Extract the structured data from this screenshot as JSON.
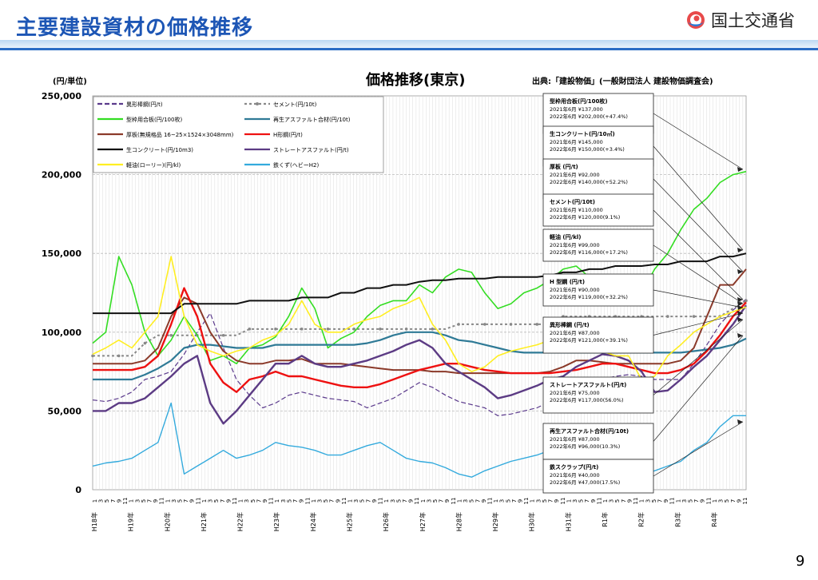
{
  "page": {
    "title": "主要建設資材の価格推移",
    "logo_text": "国土交通省",
    "page_number": "9"
  },
  "chart_data": {
    "type": "line",
    "title": "価格推移(東京)",
    "source": "出典:「建設物価」(一般財団法人 建設物価調査会)",
    "ylabel": "(円/単位)",
    "ylim": [
      0,
      250000
    ],
    "yticks": [
      "250,000",
      "200,000",
      "150,000",
      "100,000",
      "50,000",
      "0"
    ],
    "grid": true,
    "legend_position": "top-left",
    "x_year_labels": [
      "H18年",
      "H19年",
      "H20年",
      "H21年",
      "H22年",
      "H23年",
      "H24年",
      "H25年",
      "H26年",
      "H27年",
      "H28年",
      "H29年",
      "H30年",
      "H31年",
      "R1年",
      "R2年",
      "R3年",
      "R4年"
    ],
    "x_month_cycle": [
      "1",
      "3",
      "5",
      "7",
      "9",
      "11"
    ],
    "series": [
      {
        "name": "異形棒鋼(円/t)",
        "color": "#5b3a8c",
        "dash": "6,3",
        "width": 1.2,
        "values": [
          57000,
          56000,
          58000,
          62000,
          70000,
          72000,
          75000,
          86000,
          100000,
          112000,
          90000,
          70000,
          60000,
          52000,
          55000,
          60000,
          62000,
          60000,
          58000,
          57000,
          56000,
          52000,
          55000,
          58000,
          63000,
          68000,
          65000,
          60000,
          56000,
          54000,
          52000,
          47000,
          48000,
          50000,
          52000,
          56000,
          60000,
          63000,
          66000,
          70000,
          72000,
          73000,
          72000,
          70000,
          70000,
          70000,
          80000,
          92000,
          105000,
          114000,
          121000
        ]
      },
      {
        "name": "セメント(円/10t)",
        "color": "#888888",
        "dash": "3,3",
        "marker": true,
        "width": 2,
        "values": [
          85000,
          85000,
          85000,
          85000,
          93000,
          98000,
          98000,
          98000,
          98000,
          98000,
          98000,
          98000,
          102000,
          102000,
          102000,
          102000,
          102000,
          102000,
          102000,
          102000,
          102000,
          102000,
          102000,
          102000,
          102000,
          102000,
          102000,
          102000,
          105000,
          105000,
          105000,
          105000,
          105000,
          105000,
          105000,
          105000,
          110000,
          110000,
          110000,
          110000,
          110000,
          110000,
          110000,
          110000,
          110000,
          110000,
          110000,
          110000,
          110000,
          115000,
          120000
        ]
      },
      {
        "name": "型枠用合板(円/100枚)",
        "color": "#33dd22",
        "width": 1.6,
        "values": [
          93000,
          100000,
          148000,
          130000,
          100000,
          85000,
          95000,
          110000,
          98000,
          82000,
          85000,
          80000,
          90000,
          92000,
          97000,
          110000,
          128000,
          115000,
          90000,
          96000,
          100000,
          110000,
          117000,
          120000,
          120000,
          130000,
          125000,
          135000,
          140000,
          138000,
          125000,
          115000,
          118000,
          125000,
          128000,
          133000,
          140000,
          142000,
          135000,
          125000,
          118000,
          120000,
          125000,
          140000,
          150000,
          165000,
          178000,
          185000,
          195000,
          200000,
          202000
        ]
      },
      {
        "name": "再生アスファルト合材(円/10t)",
        "color": "#2f7a96",
        "width": 2.2,
        "values": [
          70000,
          70000,
          70000,
          70000,
          73000,
          77000,
          82000,
          90000,
          92000,
          92000,
          91000,
          90000,
          90000,
          90000,
          92000,
          92000,
          92000,
          92000,
          92000,
          92000,
          92000,
          93000,
          95000,
          98000,
          100000,
          100000,
          100000,
          98000,
          95000,
          94000,
          92000,
          90000,
          88000,
          87000,
          87000,
          87000,
          87000,
          87000,
          87000,
          87000,
          87000,
          87000,
          87000,
          87000,
          87000,
          87000,
          88000,
          89000,
          90000,
          92000,
          96000
        ]
      },
      {
        "name": "厚板(無規格品 16~25×1524×3048mm)",
        "color": "#8b3a2a",
        "width": 2,
        "values": [
          80000,
          80000,
          80000,
          80000,
          82000,
          90000,
          110000,
          122000,
          118000,
          100000,
          88000,
          82000,
          80000,
          80000,
          82000,
          82000,
          83000,
          80000,
          80000,
          80000,
          79000,
          78000,
          77000,
          76000,
          76000,
          76000,
          75000,
          75000,
          74000,
          74000,
          74000,
          74000,
          74000,
          74000,
          74000,
          75000,
          78000,
          82000,
          82000,
          81000,
          80000,
          80000,
          80000,
          80000,
          80000,
          82000,
          90000,
          110000,
          130000,
          130000,
          140000
        ]
      },
      {
        "name": "H形鋼(円/t)",
        "color": "#ee1111",
        "width": 2.4,
        "values": [
          76000,
          76000,
          76000,
          76000,
          78000,
          85000,
          105000,
          128000,
          110000,
          80000,
          68000,
          62000,
          70000,
          72000,
          75000,
          72000,
          72000,
          70000,
          68000,
          66000,
          65000,
          65000,
          67000,
          70000,
          73000,
          76000,
          78000,
          80000,
          80000,
          78000,
          76000,
          75000,
          74000,
          74000,
          74000,
          74000,
          75000,
          76000,
          78000,
          80000,
          80000,
          78000,
          76000,
          74000,
          74000,
          76000,
          80000,
          88000,
          98000,
          110000,
          119000
        ]
      },
      {
        "name": "生コンクリート(円/10m3)",
        "color": "#111111",
        "width": 2,
        "values": [
          112000,
          112000,
          112000,
          112000,
          112000,
          112000,
          112000,
          118000,
          118000,
          118000,
          118000,
          118000,
          120000,
          120000,
          120000,
          120000,
          122000,
          122000,
          122000,
          125000,
          125000,
          128000,
          128000,
          130000,
          130000,
          132000,
          133000,
          133000,
          134000,
          134000,
          134000,
          135000,
          135000,
          135000,
          135000,
          136000,
          138000,
          138000,
          140000,
          140000,
          142000,
          142000,
          142000,
          143000,
          143000,
          145000,
          145000,
          145000,
          148000,
          148000,
          150000
        ]
      },
      {
        "name": "ストレートアスファルト(円/t)",
        "color": "#5c3b84",
        "width": 2.4,
        "values": [
          50000,
          50000,
          55000,
          55000,
          58000,
          65000,
          72000,
          80000,
          85000,
          55000,
          42000,
          50000,
          60000,
          70000,
          80000,
          80000,
          85000,
          80000,
          78000,
          78000,
          80000,
          82000,
          85000,
          88000,
          92000,
          95000,
          90000,
          80000,
          75000,
          70000,
          65000,
          58000,
          60000,
          63000,
          66000,
          70000,
          72000,
          78000,
          82000,
          86000,
          85000,
          82000,
          75000,
          62000,
          63000,
          70000,
          78000,
          85000,
          95000,
          105000,
          117000
        ]
      },
      {
        "name": "軽油(ローリー)(円/kl)",
        "color": "#ffee22",
        "width": 1.6,
        "values": [
          86000,
          90000,
          95000,
          90000,
          100000,
          110000,
          148000,
          110000,
          92000,
          88000,
          85000,
          88000,
          90000,
          95000,
          98000,
          105000,
          120000,
          105000,
          100000,
          100000,
          105000,
          108000,
          110000,
          115000,
          118000,
          122000,
          105000,
          95000,
          80000,
          75000,
          78000,
          85000,
          88000,
          90000,
          92000,
          95000,
          95000,
          93000,
          92000,
          88000,
          85000,
          85000,
          70000,
          72000,
          85000,
          92000,
          100000,
          105000,
          110000,
          113000,
          116000
        ]
      },
      {
        "name": "鉄くず(ヘビーH2)",
        "color": "#33aadd",
        "width": 1.4,
        "values": [
          15000,
          17000,
          18000,
          20000,
          25000,
          30000,
          55000,
          10000,
          15000,
          20000,
          25000,
          20000,
          22000,
          25000,
          30000,
          28000,
          27000,
          25000,
          22000,
          22000,
          25000,
          28000,
          30000,
          25000,
          20000,
          18000,
          17000,
          14000,
          10000,
          8000,
          12000,
          15000,
          18000,
          20000,
          22000,
          25000,
          23000,
          20000,
          18000,
          15000,
          12000,
          10000,
          10000,
          12000,
          15000,
          18000,
          25000,
          30000,
          40000,
          47000,
          47000
        ]
      }
    ],
    "annotations": [
      {
        "title": "型枠用合板(円/100枚)",
        "line1": "2021年6月  ¥137,000",
        "line2": "2022年6月  ¥202,000(+47.4%)"
      },
      {
        "title": "生コンクリート(円/10㎥)",
        "line1": "2021年6月  ¥145,000",
        "line2": "2022年6月  ¥150,000(+3.4%)"
      },
      {
        "title": "厚板 (円/t)",
        "line1": "2021年6月  ¥92,000",
        "line2": "2022年6月  ¥140,000(+52.2%)"
      },
      {
        "title": "セメント(円/10t)",
        "line1": "2021年6月  ¥110,000",
        "line2": "2022年6月  ¥120,000(9.1%)"
      },
      {
        "title": "軽油 (円/kl)",
        "line1": "2021年6月  ¥99,000",
        "line2": "2022年6月  ¥116,000(+17.2%)"
      },
      {
        "title": "H 型鋼 (円/t)",
        "line1": "2021年6月  ¥90,000",
        "line2": "2022年6月  ¥119,000(+32.2%)"
      },
      {
        "title": "異形棒鋼 (円/t)",
        "line1": "2021年6月  ¥87,000",
        "line2": "2022年6月  ¥121,000(+39.1%)"
      },
      {
        "title": "ストレートアスファルト(円/t)",
        "line1": "2021年6月  ¥75,000",
        "line2": "2022年6月  ¥117,000(56.0%)"
      },
      {
        "title": "再生アスファルト合材(円/10t)",
        "line1": "2021年6月  ¥87,000",
        "line2": "2022年6月  ¥96,000(10.3%)"
      },
      {
        "title": "鉄スクラップ(円/t)",
        "line1": "2021年6月  ¥40,000",
        "line2": "2022年6月  ¥47,000(17.5%)"
      }
    ]
  }
}
